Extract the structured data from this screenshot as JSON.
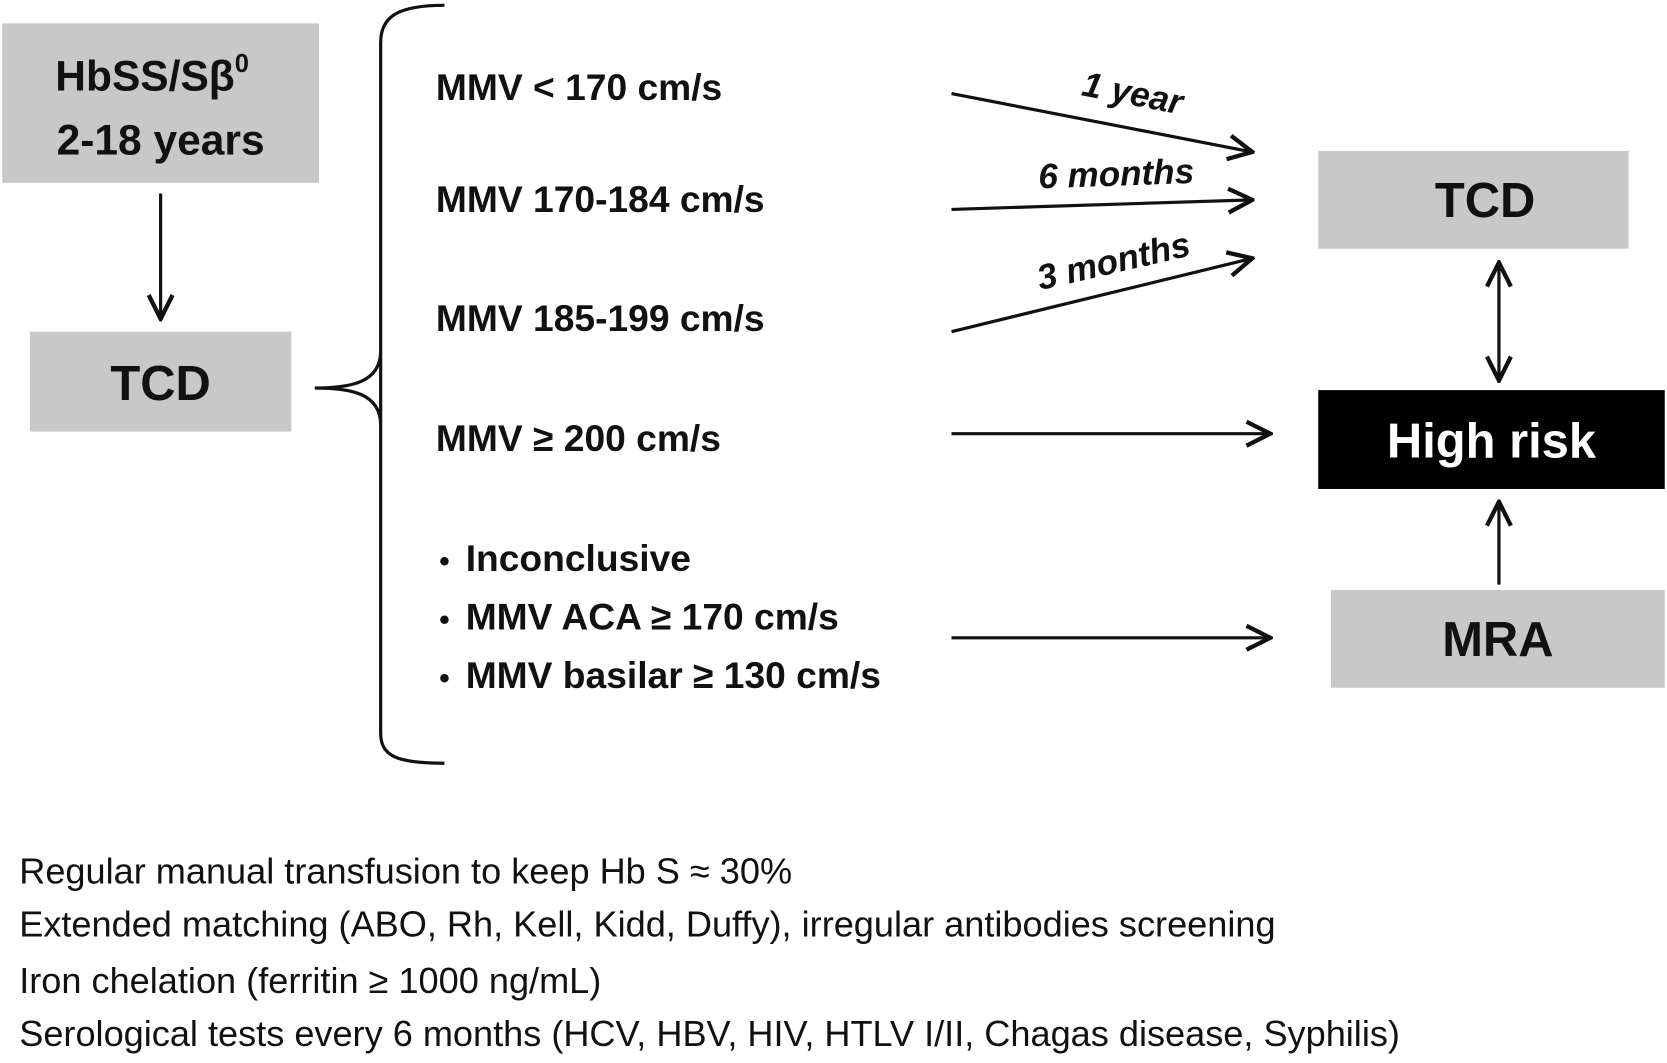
{
  "nodes": {
    "population": {
      "label": "HbSS/Sβ",
      "superscript": "0",
      "age": "2-18 years"
    },
    "tcd_initial": {
      "label": "TCD"
    },
    "tcd_followup": {
      "label": "TCD"
    },
    "high_risk": {
      "label": "High risk"
    },
    "mra": {
      "label": "MRA"
    }
  },
  "conditions": [
    "MMV < 170 cm/s",
    "MMV 170-184 cm/s",
    "MMV 185-199 cm/s",
    "MMV ≥ 200 cm/s"
  ],
  "mra_criteria": [
    "Inconclusive",
    "MMV ACA ≥ 170 cm/s",
    "MMV basilar ≥ 130 cm/s"
  ],
  "intervals": [
    "1 year",
    "6 months",
    "3 months"
  ],
  "notes": [
    "Regular manual transfusion to keep Hb S ≈ 30%",
    "Extended matching (ABO, Rh, Kell, Kidd, Duffy), irregular antibodies screening",
    "Iron chelation (ferritin ≥ 1000 ng/mL)",
    "Serological tests every 6 months (HCV, HBV, HIV, HTLV I/II, Chagas disease, Syphilis)"
  ]
}
